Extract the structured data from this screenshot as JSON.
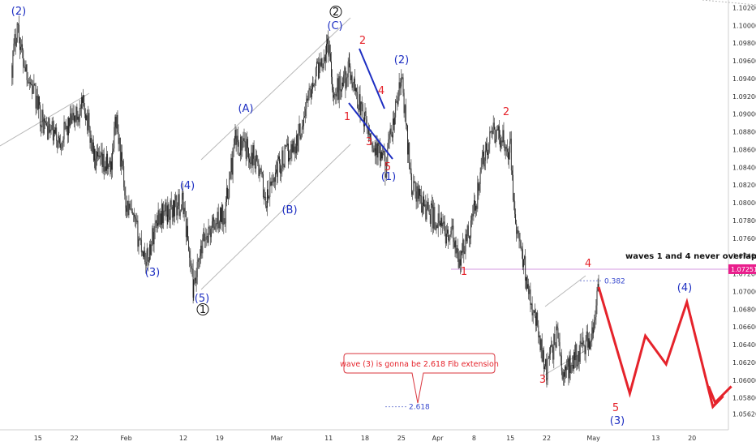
{
  "chart_data": {
    "type": "candlestick",
    "title": "",
    "xlabel": "",
    "ylabel": "",
    "ylim": [
      1.0544,
      1.1025
    ],
    "y_ticks": [
      "1.10200",
      "1.10000",
      "1.09800",
      "1.09600",
      "1.09400",
      "1.09200",
      "1.09000",
      "1.08800",
      "1.08600",
      "1.08400",
      "1.08200",
      "1.08000",
      "1.07800",
      "1.07600",
      "1.07400",
      "1.07200",
      "1.07000",
      "1.06800",
      "1.06600",
      "1.06400",
      "1.06200",
      "1.06000",
      "1.05800",
      "1.05620"
    ],
    "x_ticks": [
      "15",
      "22",
      "Feb",
      "12",
      "19",
      "Mar",
      "11",
      "18",
      "25",
      "Apr",
      "8",
      "15",
      "22",
      "May",
      "13",
      "20"
    ],
    "price_label": "1.07251",
    "price_line_value": 1.07251,
    "anchors": [
      [
        "2024-01-10",
        1.0955
      ],
      [
        "2024-01-11",
        1.1002
      ],
      [
        "2024-01-12",
        1.0965
      ],
      [
        "2024-01-16",
        1.089
      ],
      [
        "2024-01-19",
        1.087
      ],
      [
        "2024-01-22",
        1.0895
      ],
      [
        "2024-01-24",
        1.091
      ],
      [
        "2024-01-26",
        1.0845
      ],
      [
        "2024-01-29",
        1.084
      ],
      [
        "2024-01-30",
        1.0895
      ],
      [
        "2024-02-01",
        1.08
      ],
      [
        "2024-02-05",
        1.0735
      ],
      [
        "2024-02-07",
        1.0785
      ],
      [
        "2024-02-09",
        1.079
      ],
      [
        "2024-02-12",
        1.08
      ],
      [
        "2024-02-14",
        1.07
      ],
      [
        "2024-02-16",
        1.076
      ],
      [
        "2024-02-20",
        1.079
      ],
      [
        "2024-02-22",
        1.087
      ],
      [
        "2024-02-26",
        1.085
      ],
      [
        "2024-02-28",
        1.08
      ],
      [
        "2024-03-01",
        1.084
      ],
      [
        "2024-03-05",
        1.087
      ],
      [
        "2024-03-08",
        1.094
      ],
      [
        "2024-03-11",
        1.098
      ],
      [
        "2024-03-12",
        1.092
      ],
      [
        "2024-03-15",
        1.095
      ],
      [
        "2024-03-18",
        1.089
      ],
      [
        "2024-03-20",
        1.086
      ],
      [
        "2024-03-22",
        1.0842
      ],
      [
        "2024-03-25",
        1.094
      ],
      [
        "2024-03-27",
        1.082
      ],
      [
        "2024-03-29",
        1.08
      ],
      [
        "2024-04-02",
        1.077
      ],
      [
        "2024-04-04",
        1.076
      ],
      [
        "2024-04-05",
        1.0728
      ],
      [
        "2024-04-08",
        1.079
      ],
      [
        "2024-04-10",
        1.0855
      ],
      [
        "2024-04-12",
        1.088
      ],
      [
        "2024-04-15",
        1.086
      ],
      [
        "2024-04-16",
        1.077
      ],
      [
        "2024-04-18",
        1.072
      ],
      [
        "2024-04-22",
        1.061
      ],
      [
        "2024-04-24",
        1.0655
      ],
      [
        "2024-04-25",
        1.0605
      ],
      [
        "2024-04-29",
        1.064
      ],
      [
        "2024-05-01",
        1.065
      ],
      [
        "2024-05-02",
        1.0712
      ]
    ],
    "projection": [
      [
        "2024-05-02",
        1.0705
      ],
      [
        "2024-05-08",
        1.0585
      ],
      [
        "2024-05-11",
        1.065
      ],
      [
        "2024-05-15",
        1.0618
      ],
      [
        "2024-05-19",
        1.0688
      ],
      [
        "2024-05-24",
        1.057
      ],
      [
        "2024-05-26",
        1.0582
      ]
    ],
    "annotations": [
      {
        "text": "(2)",
        "color": "blue"
      },
      {
        "text": "(3)",
        "color": "blue"
      },
      {
        "text": "(4)",
        "color": "blue"
      },
      {
        "text": "(5)",
        "color": "blue"
      },
      {
        "text": "1",
        "color": "black",
        "circled": true
      },
      {
        "text": "(A)",
        "color": "blue"
      },
      {
        "text": "(B)",
        "color": "blue"
      },
      {
        "text": "(C)",
        "color": "blue"
      },
      {
        "text": "2",
        "color": "black",
        "circled": true
      },
      {
        "text": "2",
        "color": "red"
      },
      {
        "text": "1",
        "color": "red"
      },
      {
        "text": "3",
        "color": "red"
      },
      {
        "text": "4",
        "color": "red"
      },
      {
        "text": "5",
        "color": "red"
      },
      {
        "text": "(1)",
        "color": "blue"
      },
      {
        "text": "(2)",
        "color": "blue"
      },
      {
        "text": "2",
        "color": "red"
      },
      {
        "text": "1",
        "color": "red"
      },
      {
        "text": "3",
        "color": "red"
      },
      {
        "text": "4",
        "color": "red"
      },
      {
        "text": "5",
        "color": "red"
      },
      {
        "text": "(3)",
        "color": "blue"
      },
      {
        "text": "(4)",
        "color": "blue"
      }
    ],
    "fib_labels": [
      "0.382",
      "2.618"
    ],
    "notes": [
      "waves 1 and 4 never overlap",
      "wave (3) is gonna be 2.618 Fib extension"
    ],
    "colors": {
      "candle": "#222222",
      "blue": "#1d2ec2",
      "red": "#e5232b",
      "price_tag": "#e91e8c",
      "price_line": "#d59ae0",
      "channel": "#b8b8b8"
    }
  }
}
